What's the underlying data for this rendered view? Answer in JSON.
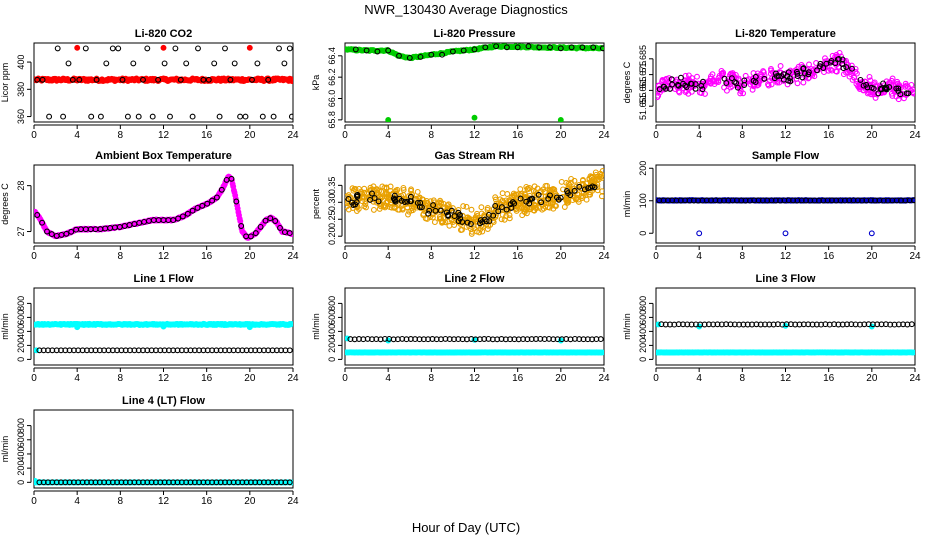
{
  "figure": {
    "title": "NWR_130430  Average Diagnostics",
    "xlabel": "Hour of Day (UTC)"
  },
  "chart_data": [
    {
      "id": "co2",
      "type": "scatter",
      "title": "Li-820 CO2",
      "ylabel": "Licor ppm",
      "xlim": [
        0,
        24
      ],
      "ylim": [
        356,
        414
      ],
      "xticks": [
        0,
        4,
        8,
        12,
        16,
        20,
        24
      ],
      "yticks": [
        360,
        380,
        400
      ],
      "series": [
        {
          "color": "#ff0000",
          "filled": true,
          "band": {
            "from": 0.1,
            "to": 23.9,
            "step": 0.1,
            "center": 387,
            "jitter": 1
          },
          "points": [
            [
              4.0,
              410.5
            ],
            [
              12.0,
              410.5
            ],
            [
              20.0,
              410.5
            ]
          ]
        },
        {
          "color": "#000000",
          "filled": false,
          "points": [
            [
              0.3,
              387
            ],
            [
              0.8,
              387
            ],
            [
              1.4,
              360
            ],
            [
              2.2,
              410
            ],
            [
              2.7,
              360
            ],
            [
              3.2,
              399
            ],
            [
              3.6,
              387
            ],
            [
              4.2,
              387
            ],
            [
              4.8,
              410
            ],
            [
              5.3,
              360
            ],
            [
              5.8,
              387
            ],
            [
              6.2,
              360
            ],
            [
              6.7,
              399
            ],
            [
              7.3,
              410
            ],
            [
              7.8,
              410
            ],
            [
              8.2,
              387
            ],
            [
              8.7,
              360
            ],
            [
              9.2,
              399
            ],
            [
              9.7,
              360
            ],
            [
              10.1,
              387
            ],
            [
              10.5,
              410
            ],
            [
              11.0,
              360
            ],
            [
              11.5,
              387
            ],
            [
              12.1,
              399
            ],
            [
              12.6,
              360
            ],
            [
              13.1,
              410
            ],
            [
              13.6,
              387
            ],
            [
              14.1,
              399
            ],
            [
              14.7,
              360
            ],
            [
              15.2,
              410
            ],
            [
              15.7,
              387
            ],
            [
              16.2,
              387
            ],
            [
              16.7,
              399
            ],
            [
              17.2,
              360
            ],
            [
              17.7,
              410
            ],
            [
              18.2,
              387
            ],
            [
              18.6,
              399
            ],
            [
              19.1,
              360
            ],
            [
              19.6,
              360
            ],
            [
              20.2,
              387
            ],
            [
              20.7,
              399
            ],
            [
              21.2,
              360
            ],
            [
              21.7,
              387
            ],
            [
              22.2,
              360
            ],
            [
              22.7,
              410
            ],
            [
              23.2,
              399
            ],
            [
              23.7,
              410
            ],
            [
              23.9,
              360
            ]
          ]
        }
      ]
    },
    {
      "id": "pressure",
      "type": "scatter",
      "title": "Li-820 Pressure",
      "ylabel": "kPa",
      "xlim": [
        0,
        24
      ],
      "ylim": [
        65.78,
        66.52
      ],
      "xticks": [
        0,
        4,
        8,
        12,
        16,
        20,
        24
      ],
      "yticks": [
        65.8,
        66.0,
        66.2,
        66.4
      ],
      "series": [
        {
          "color": "#00cc00",
          "filled": true,
          "band": {
            "from": 0.1,
            "to": 23.9,
            "step": 0.12,
            "curve": "pressure",
            "jitter": 0.006
          },
          "points": [
            [
              4.0,
              65.8
            ],
            [
              12.0,
              65.82
            ],
            [
              20.0,
              65.8
            ]
          ]
        },
        {
          "color": "#000000",
          "filled": false,
          "points": [
            [
              1.0,
              66.46
            ],
            [
              2.0,
              66.45
            ],
            [
              3.0,
              66.44
            ],
            [
              4.0,
              66.45
            ],
            [
              5.0,
              66.4
            ],
            [
              6.0,
              66.38
            ],
            [
              7.0,
              66.39
            ],
            [
              8.0,
              66.41
            ],
            [
              9.0,
              66.41
            ],
            [
              10.0,
              66.44
            ],
            [
              11.0,
              66.45
            ],
            [
              12.0,
              66.46
            ],
            [
              13.0,
              66.48
            ],
            [
              14.0,
              66.49
            ],
            [
              15.0,
              66.48
            ],
            [
              16.0,
              66.48
            ],
            [
              17.0,
              66.49
            ],
            [
              18.0,
              66.48
            ],
            [
              19.0,
              66.48
            ],
            [
              20.0,
              66.47
            ],
            [
              21.0,
              66.48
            ],
            [
              22.0,
              66.48
            ],
            [
              23.0,
              66.48
            ],
            [
              23.9,
              66.47
            ]
          ]
        }
      ]
    },
    {
      "id": "licortemp",
      "type": "scatter",
      "title": "Li-820 Temperature",
      "ylabel": "degrees C",
      "xlim": [
        0,
        24
      ],
      "ylim": [
        51.645,
        51.695
      ],
      "xticks": [
        0,
        4,
        8,
        12,
        16,
        20,
        24
      ],
      "yticks": [
        51.655,
        51.665,
        51.675,
        51.685
      ],
      "series": [
        {
          "color": "#ff00ff",
          "filled": false,
          "cloud": {
            "from": 0.1,
            "to": 23.9,
            "count": 420,
            "curve": "licortemp",
            "spread": 0.007
          },
          "points": []
        },
        {
          "color": "#000000",
          "filled": false,
          "cloud": {
            "from": 0.3,
            "to": 23.9,
            "count": 90,
            "curve": "licortemp",
            "spread": 0.004
          },
          "points": []
        }
      ]
    },
    {
      "id": "boxtemp",
      "type": "scatter",
      "title": "Ambient Box Temperature",
      "ylabel": "degrees C",
      "xlim": [
        0,
        24
      ],
      "ylim": [
        26.75,
        28.45
      ],
      "xticks": [
        0,
        4,
        8,
        12,
        16,
        20,
        24
      ],
      "yticks": [
        27.0,
        28.0
      ],
      "series": [
        {
          "color": "#ff00ff",
          "filled": true,
          "band": {
            "from": 0.1,
            "to": 23.9,
            "step": 0.06,
            "curve": "boxtemp",
            "jitter": 0.012
          },
          "points": []
        },
        {
          "color": "#000000",
          "filled": false,
          "band": {
            "from": 0.3,
            "to": 23.9,
            "step": 0.45,
            "curve": "boxtemp",
            "jitter": 0
          },
          "points": []
        }
      ]
    },
    {
      "id": "rh",
      "type": "scatter",
      "title": "Gas Stream RH",
      "ylabel": "percent",
      "xlim": [
        0,
        24
      ],
      "ylim": [
        0.18,
        0.41
      ],
      "xticks": [
        0,
        4,
        8,
        12,
        16,
        20,
        24
      ],
      "yticks": [
        0.2,
        0.25,
        0.3,
        0.35
      ],
      "series": [
        {
          "color": "#e8a000",
          "filled": false,
          "cloud": {
            "from": 0.1,
            "to": 23.9,
            "count": 620,
            "curve": "rh",
            "spread": 0.045
          },
          "points": []
        },
        {
          "color": "#000000",
          "filled": false,
          "cloud": {
            "from": 0.3,
            "to": 23.9,
            "count": 85,
            "curve": "rh",
            "spread": 0.02
          },
          "points": []
        }
      ]
    },
    {
      "id": "sampleflow",
      "type": "scatter",
      "title": "Sample Flow",
      "ylabel": "ml/min",
      "xlim": [
        0,
        24
      ],
      "ylim": [
        -30,
        210
      ],
      "xticks": [
        0,
        4,
        8,
        12,
        16,
        20,
        24
      ],
      "yticks": [
        0,
        100,
        200
      ],
      "series": [
        {
          "color": "#0000cc",
          "filled": false,
          "band": {
            "from": 0.1,
            "to": 23.9,
            "step": 0.1,
            "center": 101,
            "jitter": 1
          },
          "points": [
            [
              4.0,
              0
            ],
            [
              12.0,
              0
            ],
            [
              20.0,
              0
            ]
          ]
        },
        {
          "color": "#000000",
          "filled": false,
          "band": {
            "from": 0.3,
            "to": 23.9,
            "step": 0.4,
            "center": 101,
            "jitter": 0.5
          },
          "points": []
        }
      ]
    },
    {
      "id": "line1",
      "type": "scatter",
      "title": "Line 1 Flow",
      "ylabel": "ml/min",
      "xlim": [
        0,
        24
      ],
      "ylim": [
        -80,
        1020
      ],
      "xticks": [
        0,
        4,
        8,
        12,
        16,
        20,
        24
      ],
      "yticks": [
        0,
        200,
        400,
        600,
        800
      ],
      "series": [
        {
          "color": "#00ffff",
          "filled": true,
          "band": {
            "from": 0.1,
            "to": 23.9,
            "step": 0.08,
            "center": 500,
            "jitter": 8
          },
          "points": [
            [
              0.2,
              130
            ],
            [
              4.0,
              460
            ],
            [
              12.0,
              470
            ],
            [
              20.0,
              460
            ]
          ]
        },
        {
          "color": "#000000",
          "filled": false,
          "band": {
            "from": 0.5,
            "to": 23.9,
            "step": 0.4,
            "center": 130,
            "jitter": 0
          },
          "points": []
        }
      ]
    },
    {
      "id": "line2",
      "type": "scatter",
      "title": "Line 2 Flow",
      "ylabel": "ml/min",
      "xlim": [
        0,
        24
      ],
      "ylim": [
        -80,
        1020
      ],
      "xticks": [
        0,
        4,
        8,
        12,
        16,
        20,
        24
      ],
      "yticks": [
        0,
        200,
        400,
        600,
        800
      ],
      "series": [
        {
          "color": "#00ffff",
          "filled": true,
          "band": {
            "from": 0.1,
            "to": 23.9,
            "step": 0.08,
            "center": 100,
            "jitter": 2
          },
          "points": [
            [
              0.2,
              300
            ],
            [
              4.0,
              270
            ],
            [
              12.0,
              280
            ],
            [
              20.0,
              270
            ]
          ]
        },
        {
          "color": "#000000",
          "filled": false,
          "band": {
            "from": 0.5,
            "to": 23.9,
            "step": 0.4,
            "center": 290,
            "jitter": 3
          },
          "points": []
        }
      ]
    },
    {
      "id": "line3",
      "type": "scatter",
      "title": "Line 3 Flow",
      "ylabel": "ml/min",
      "xlim": [
        0,
        24
      ],
      "ylim": [
        -80,
        1020
      ],
      "xticks": [
        0,
        4,
        8,
        12,
        16,
        20,
        24
      ],
      "yticks": [
        0,
        200,
        400,
        600,
        800
      ],
      "series": [
        {
          "color": "#00ffff",
          "filled": true,
          "band": {
            "from": 0.1,
            "to": 23.9,
            "step": 0.08,
            "center": 100,
            "jitter": 2
          },
          "points": [
            [
              0.2,
              500
            ],
            [
              4.0,
              470
            ],
            [
              12.0,
              480
            ],
            [
              20.0,
              470
            ]
          ]
        },
        {
          "color": "#000000",
          "filled": false,
          "band": {
            "from": 0.5,
            "to": 23.9,
            "step": 0.4,
            "center": 500,
            "jitter": 3
          },
          "points": []
        }
      ]
    },
    {
      "id": "line4",
      "type": "scatter",
      "title": "Line 4 (LT) Flow",
      "ylabel": "ml/min",
      "xlim": [
        0,
        24
      ],
      "ylim": [
        -80,
        1020
      ],
      "xticks": [
        0,
        4,
        8,
        12,
        16,
        20,
        24
      ],
      "yticks": [
        0,
        200,
        400,
        600,
        800
      ],
      "series": [
        {
          "color": "#00ffff",
          "filled": true,
          "band": {
            "from": 0.1,
            "to": 23.9,
            "step": 0.08,
            "center": 0,
            "jitter": 1
          },
          "points": [
            [
              0.1,
              20
            ]
          ]
        },
        {
          "color": "#000000",
          "filled": false,
          "band": {
            "from": 0.5,
            "to": 23.9,
            "step": 0.4,
            "center": 0,
            "jitter": 0
          },
          "points": []
        }
      ]
    }
  ]
}
